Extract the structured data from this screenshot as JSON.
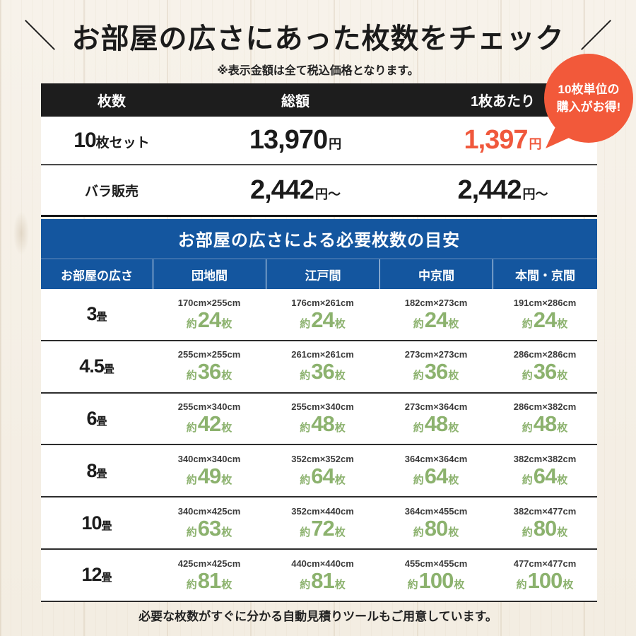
{
  "header": {
    "slash_left": "＼",
    "title": "お部屋の広さにあった枚数をチェック",
    "slash_right": "／",
    "note": "※表示金額は全て税込価格となります。"
  },
  "badge": {
    "line1": "10枚単位の",
    "line2": "購入がお得!"
  },
  "price_table": {
    "col_headers": [
      "枚数",
      "総額",
      "1枚あたり"
    ],
    "rows": [
      {
        "label_num": "10",
        "label_text": "枚セット",
        "total": "13,970",
        "total_unit": "円",
        "per": "1,397",
        "per_unit": "円"
      },
      {
        "label_num": "",
        "label_text": "バラ販売",
        "total": "2,442",
        "total_unit": "円〜",
        "per": "2,442",
        "per_unit": "円〜"
      }
    ]
  },
  "size_table": {
    "title": "お部屋の広さによる必要枚数の目安",
    "col_headers": [
      "お部屋の広さ",
      "団地間",
      "江戸間",
      "中京間",
      "本間・京間"
    ],
    "count_prefix": "約",
    "count_suffix": "枚",
    "rows": [
      {
        "size": "3",
        "tatami": "畳",
        "cells": [
          {
            "dim": "170cm×255cm",
            "count": "24"
          },
          {
            "dim": "176cm×261cm",
            "count": "24"
          },
          {
            "dim": "182cm×273cm",
            "count": "24"
          },
          {
            "dim": "191cm×286cm",
            "count": "24"
          }
        ]
      },
      {
        "size": "4.5",
        "tatami": "畳",
        "cells": [
          {
            "dim": "255cm×255cm",
            "count": "36"
          },
          {
            "dim": "261cm×261cm",
            "count": "36"
          },
          {
            "dim": "273cm×273cm",
            "count": "36"
          },
          {
            "dim": "286cm×286cm",
            "count": "36"
          }
        ]
      },
      {
        "size": "6",
        "tatami": "畳",
        "cells": [
          {
            "dim": "255cm×340cm",
            "count": "42"
          },
          {
            "dim": "255cm×340cm",
            "count": "48"
          },
          {
            "dim": "273cm×364cm",
            "count": "48"
          },
          {
            "dim": "286cm×382cm",
            "count": "48"
          }
        ]
      },
      {
        "size": "8",
        "tatami": "畳",
        "cells": [
          {
            "dim": "340cm×340cm",
            "count": "49"
          },
          {
            "dim": "352cm×352cm",
            "count": "64"
          },
          {
            "dim": "364cm×364cm",
            "count": "64"
          },
          {
            "dim": "382cm×382cm",
            "count": "64"
          }
        ]
      },
      {
        "size": "10",
        "tatami": "畳",
        "cells": [
          {
            "dim": "340cm×425cm",
            "count": "63"
          },
          {
            "dim": "352cm×440cm",
            "count": "72"
          },
          {
            "dim": "364cm×455cm",
            "count": "80"
          },
          {
            "dim": "382cm×477cm",
            "count": "80"
          }
        ]
      },
      {
        "size": "12",
        "tatami": "畳",
        "cells": [
          {
            "dim": "425cm×425cm",
            "count": "81"
          },
          {
            "dim": "440cm×440cm",
            "count": "81"
          },
          {
            "dim": "455cm×455cm",
            "count": "100"
          },
          {
            "dim": "477cm×477cm",
            "count": "100"
          }
        ]
      }
    ]
  },
  "footer": {
    "text": "必要な枚数がすぐに分かる自動見積りツールもご用意しています。"
  },
  "colors": {
    "accent_red": "#f0583c",
    "header_black": "#1d1d1d",
    "table_blue": "#14569f",
    "count_green": "#8cb26e",
    "background_cream": "#f5f0e7"
  }
}
